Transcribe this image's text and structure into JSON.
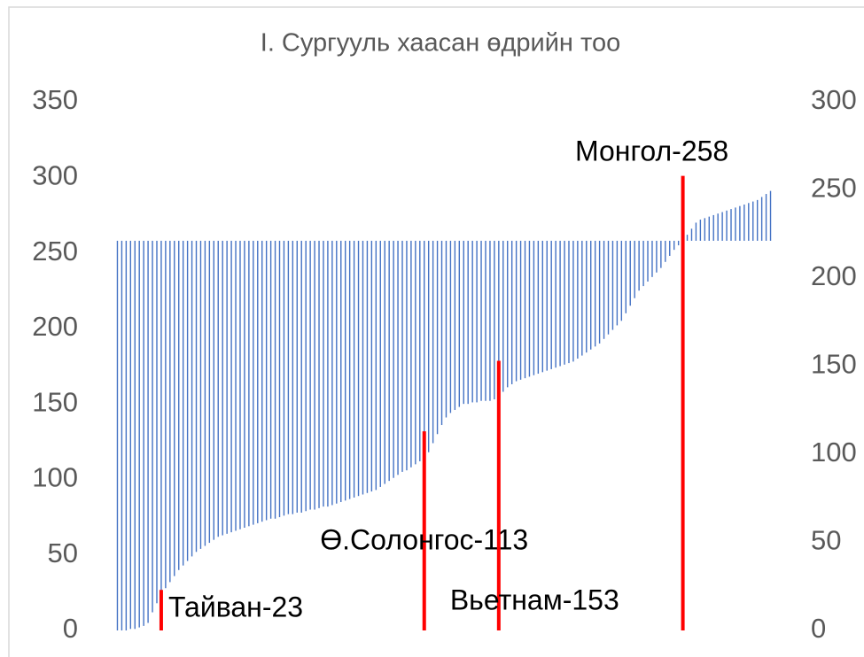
{
  "chart_data": {
    "type": "bar",
    "title": "I. Сургууль хаасан өдрийн тоо",
    "ylim": [
      0,
      350
    ],
    "yticks": [
      0,
      50,
      100,
      150,
      200,
      250,
      300,
      350
    ],
    "y2lim": [
      0,
      300
    ],
    "y2ticks": [
      0,
      50,
      100,
      150,
      200,
      250,
      300
    ],
    "y_axis_crosses": 258,
    "grid": false,
    "series": [
      {
        "type": "bar",
        "color": "#4472c4",
        "values": [
          0,
          0,
          0,
          1,
          1,
          2,
          3,
          5,
          12,
          18,
          23,
          28,
          32,
          36,
          40,
          43,
          46,
          49,
          52,
          54,
          56,
          58,
          60,
          62,
          63,
          64,
          65,
          66,
          67,
          68,
          69,
          70,
          71,
          72,
          73,
          74,
          74,
          75,
          76,
          77,
          77,
          78,
          78,
          79,
          80,
          80,
          81,
          82,
          82,
          83,
          84,
          85,
          86,
          87,
          88,
          89,
          90,
          91,
          92,
          93,
          95,
          97,
          99,
          101,
          103,
          105,
          106,
          108,
          110,
          112,
          113,
          118,
          124,
          130,
          136,
          141,
          144,
          146,
          148,
          150,
          150,
          151,
          151,
          152,
          152,
          152,
          153,
          153,
          158,
          161,
          163,
          165,
          166,
          167,
          168,
          169,
          170,
          171,
          172,
          173,
          174,
          175,
          176,
          177,
          178,
          180,
          182,
          184,
          186,
          188,
          190,
          193,
          196,
          199,
          202,
          205,
          210,
          215,
          220,
          225,
          228,
          231,
          234,
          237,
          240,
          244,
          248,
          252,
          255,
          258,
          262,
          266,
          270,
          272,
          273,
          274,
          275,
          276,
          277,
          278,
          279,
          280,
          281,
          282,
          283,
          284,
          285,
          287,
          289,
          291
        ]
      },
      {
        "type": "marker",
        "axis": "y2",
        "color": "#ff0000",
        "values": [
          null,
          null,
          null,
          null,
          null,
          null,
          null,
          null,
          null,
          null,
          23,
          null,
          null,
          null,
          null,
          null,
          null,
          null,
          null,
          null,
          null,
          null,
          null,
          null,
          null,
          null,
          null,
          null,
          null,
          null,
          null,
          null,
          null,
          null,
          null,
          null,
          null,
          null,
          null,
          null,
          null,
          null,
          null,
          null,
          null,
          null,
          null,
          null,
          null,
          null,
          null,
          null,
          null,
          null,
          null,
          null,
          null,
          null,
          null,
          null,
          null,
          null,
          null,
          null,
          null,
          null,
          null,
          null,
          null,
          null,
          113,
          null,
          null,
          null,
          null,
          null,
          null,
          null,
          null,
          null,
          null,
          null,
          null,
          null,
          null,
          null,
          null,
          153,
          null,
          null,
          null,
          null,
          null,
          null,
          null,
          null,
          null,
          null,
          null,
          null,
          null,
          null,
          null,
          null,
          null,
          null,
          null,
          null,
          null,
          null,
          null,
          null,
          null,
          null,
          null,
          null,
          null,
          null,
          null,
          null,
          null,
          null,
          null,
          null,
          null,
          null,
          null,
          null,
          null,
          258,
          null,
          null,
          null,
          null,
          null,
          null,
          null,
          null,
          null,
          null,
          null,
          null,
          null,
          null,
          null,
          null,
          null,
          null,
          null,
          null
        ]
      }
    ],
    "annotations": [
      "Тайван-23",
      "Ө.Солонгос-113",
      "Вьетнам-153",
      "Монгол-258"
    ]
  }
}
